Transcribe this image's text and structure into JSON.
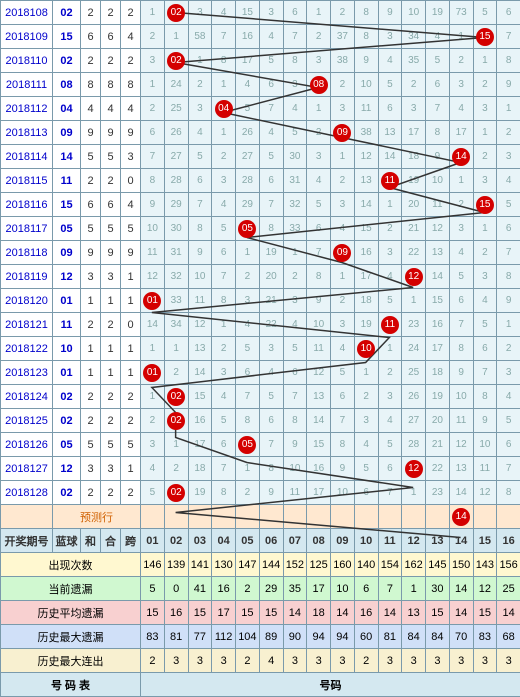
{
  "headers": {
    "period": "开奖期号",
    "blue": "蓝球",
    "he": "和",
    "he2": "合",
    "kua": "跨"
  },
  "num_headers": [
    "01",
    "02",
    "03",
    "04",
    "05",
    "06",
    "07",
    "08",
    "09",
    "10",
    "11",
    "12",
    "13",
    "14",
    "15",
    "16"
  ],
  "pred_label": "预测行",
  "stat_labels": [
    "出现次数",
    "当前遗漏",
    "历史平均遗漏",
    "历史最大遗漏",
    "历史最大连出"
  ],
  "footer": {
    "left": "号 码 表",
    "right": "号码"
  },
  "rows": [
    {
      "p": "2018108",
      "b": "02",
      "h": "2",
      "h2": "2",
      "k": "2",
      "hit": 2,
      "cells": [
        "1",
        "",
        "3",
        "4",
        "15",
        "3",
        "6",
        "1",
        "2",
        "8",
        "9",
        "10",
        "19",
        "73",
        "5",
        "6"
      ]
    },
    {
      "p": "2018109",
      "b": "15",
      "h": "6",
      "h2": "6",
      "k": "4",
      "hit": 15,
      "cells": [
        "2",
        "1",
        "58",
        "7",
        "16",
        "4",
        "7",
        "2",
        "37",
        "8",
        "3",
        "34",
        "4",
        "1",
        "",
        "7"
      ]
    },
    {
      "p": "2018110",
      "b": "02",
      "h": "2",
      "h2": "2",
      "k": "2",
      "hit": 2,
      "cells": [
        "3",
        "",
        "1",
        "8",
        "17",
        "5",
        "8",
        "3",
        "38",
        "9",
        "4",
        "35",
        "5",
        "2",
        "1",
        "8"
      ]
    },
    {
      "p": "2018111",
      "b": "08",
      "h": "8",
      "h2": "8",
      "k": "8",
      "hit": 8,
      "cells": [
        "1",
        "24",
        "2",
        "1",
        "4",
        "6",
        "3",
        "",
        "2",
        "10",
        "5",
        "2",
        "6",
        "3",
        "2",
        "9"
      ]
    },
    {
      "p": "2018112",
      "b": "04",
      "h": "4",
      "h2": "4",
      "k": "4",
      "hit": 4,
      "cells": [
        "2",
        "25",
        "3",
        "",
        "5",
        "7",
        "4",
        "1",
        "3",
        "11",
        "6",
        "3",
        "7",
        "4",
        "3",
        "1"
      ]
    },
    {
      "p": "2018113",
      "b": "09",
      "h": "9",
      "h2": "9",
      "k": "9",
      "hit": 9,
      "cells": [
        "6",
        "26",
        "4",
        "1",
        "26",
        "4",
        "5",
        "2",
        "",
        "38",
        "13",
        "17",
        "8",
        "17",
        "1",
        "2"
      ]
    },
    {
      "p": "2018114",
      "b": "14",
      "h": "5",
      "h2": "5",
      "k": "3",
      "hit": 14,
      "cells": [
        "7",
        "27",
        "5",
        "2",
        "27",
        "5",
        "30",
        "3",
        "1",
        "12",
        "14",
        "18",
        "9",
        "",
        "2",
        "3"
      ]
    },
    {
      "p": "2018115",
      "b": "11",
      "h": "2",
      "h2": "2",
      "k": "0",
      "hit": 11,
      "cells": [
        "8",
        "28",
        "6",
        "3",
        "28",
        "6",
        "31",
        "4",
        "2",
        "13",
        "",
        "19",
        "10",
        "1",
        "3",
        "4"
      ]
    },
    {
      "p": "2018116",
      "b": "15",
      "h": "6",
      "h2": "6",
      "k": "4",
      "hit": 15,
      "cells": [
        "9",
        "29",
        "7",
        "4",
        "29",
        "7",
        "32",
        "5",
        "3",
        "14",
        "1",
        "20",
        "11",
        "2",
        "",
        "5"
      ]
    },
    {
      "p": "2018117",
      "b": "05",
      "h": "5",
      "h2": "5",
      "k": "5",
      "hit": 5,
      "cells": [
        "10",
        "30",
        "8",
        "5",
        "",
        "8",
        "33",
        "6",
        "4",
        "15",
        "2",
        "21",
        "12",
        "3",
        "1",
        "6"
      ]
    },
    {
      "p": "2018118",
      "b": "09",
      "h": "9",
      "h2": "9",
      "k": "9",
      "hit": 9,
      "cells": [
        "11",
        "31",
        "9",
        "6",
        "1",
        "19",
        "1",
        "7",
        "",
        "16",
        "3",
        "22",
        "13",
        "4",
        "2",
        "7"
      ]
    },
    {
      "p": "2018119",
      "b": "12",
      "h": "3",
      "h2": "3",
      "k": "1",
      "hit": 12,
      "cells": [
        "12",
        "32",
        "10",
        "7",
        "2",
        "20",
        "2",
        "8",
        "1",
        "17",
        "4",
        "",
        "14",
        "5",
        "3",
        "8"
      ]
    },
    {
      "p": "2018120",
      "b": "01",
      "h": "1",
      "h2": "1",
      "k": "1",
      "hit": 1,
      "cells": [
        "",
        "33",
        "11",
        "8",
        "3",
        "21",
        "3",
        "9",
        "2",
        "18",
        "5",
        "1",
        "15",
        "6",
        "4",
        "9"
      ]
    },
    {
      "p": "2018121",
      "b": "11",
      "h": "2",
      "h2": "2",
      "k": "0",
      "hit": 11,
      "cells": [
        "14",
        "34",
        "12",
        "1",
        "4",
        "22",
        "4",
        "10",
        "3",
        "19",
        "",
        "23",
        "16",
        "7",
        "5",
        "1"
      ]
    },
    {
      "p": "2018122",
      "b": "10",
      "h": "1",
      "h2": "1",
      "k": "1",
      "hit": 10,
      "cells": [
        "1",
        "1",
        "13",
        "2",
        "5",
        "3",
        "5",
        "11",
        "4",
        "",
        "1",
        "24",
        "17",
        "8",
        "6",
        "2"
      ]
    },
    {
      "p": "2018123",
      "b": "01",
      "h": "1",
      "h2": "1",
      "k": "1",
      "hit": 1,
      "cells": [
        "",
        "2",
        "14",
        "3",
        "6",
        "4",
        "6",
        "12",
        "5",
        "1",
        "2",
        "25",
        "18",
        "9",
        "7",
        "3"
      ]
    },
    {
      "p": "2018124",
      "b": "02",
      "h": "2",
      "h2": "2",
      "k": "2",
      "hit": 2,
      "cells": [
        "1",
        "",
        "15",
        "4",
        "7",
        "5",
        "7",
        "13",
        "6",
        "2",
        "3",
        "26",
        "19",
        "10",
        "8",
        "4"
      ]
    },
    {
      "p": "2018125",
      "b": "02",
      "h": "2",
      "h2": "2",
      "k": "2",
      "hit": 2,
      "cells": [
        "2",
        "",
        "16",
        "5",
        "8",
        "6",
        "8",
        "14",
        "7",
        "3",
        "4",
        "27",
        "20",
        "11",
        "9",
        "5"
      ]
    },
    {
      "p": "2018126",
      "b": "05",
      "h": "5",
      "h2": "5",
      "k": "5",
      "hit": 5,
      "cells": [
        "3",
        "1",
        "17",
        "6",
        "",
        "7",
        "9",
        "15",
        "8",
        "4",
        "5",
        "28",
        "21",
        "12",
        "10",
        "6"
      ]
    },
    {
      "p": "2018127",
      "b": "12",
      "h": "3",
      "h2": "3",
      "k": "1",
      "hit": 12,
      "cells": [
        "4",
        "2",
        "18",
        "7",
        "1",
        "8",
        "10",
        "16",
        "9",
        "5",
        "6",
        "",
        "22",
        "13",
        "11",
        "7"
      ]
    },
    {
      "p": "2018128",
      "b": "02",
      "h": "2",
      "h2": "2",
      "k": "2",
      "hit": 2,
      "cells": [
        "5",
        "",
        "19",
        "8",
        "2",
        "9",
        "11",
        "17",
        "10",
        "6",
        "7",
        "1",
        "23",
        "14",
        "12",
        "8"
      ]
    }
  ],
  "pred_hit": 14,
  "stats": [
    [
      "146",
      "139",
      "141",
      "130",
      "147",
      "144",
      "152",
      "125",
      "160",
      "140",
      "154",
      "162",
      "145",
      "150",
      "143",
      "156"
    ],
    [
      "5",
      "0",
      "41",
      "16",
      "2",
      "29",
      "35",
      "17",
      "10",
      "6",
      "7",
      "1",
      "30",
      "14",
      "12",
      "25"
    ],
    [
      "15",
      "16",
      "15",
      "17",
      "15",
      "15",
      "14",
      "18",
      "14",
      "16",
      "14",
      "13",
      "15",
      "14",
      "15",
      "14"
    ],
    [
      "83",
      "81",
      "77",
      "112",
      "104",
      "89",
      "90",
      "94",
      "94",
      "60",
      "81",
      "84",
      "84",
      "70",
      "83",
      "68"
    ],
    [
      "2",
      "3",
      "3",
      "3",
      "2",
      "4",
      "3",
      "3",
      "3",
      "2",
      "3",
      "3",
      "3",
      "3",
      "3",
      "3"
    ]
  ],
  "colors": {
    "ball": "#d40000",
    "grid": "#7a9aab",
    "line": "#333",
    "header_bg": "#d4e8f0",
    "num_bg": "#e8f4f8"
  }
}
